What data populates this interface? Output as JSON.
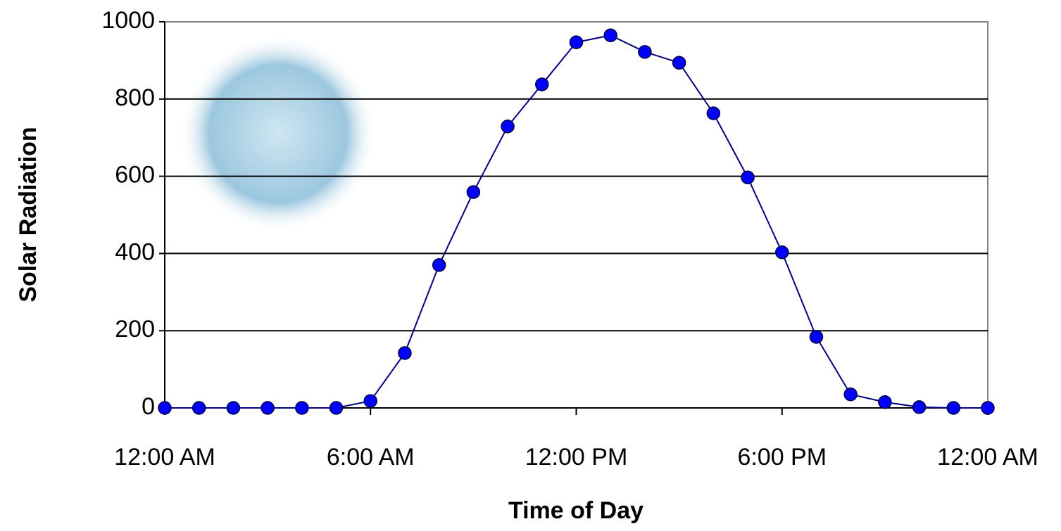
{
  "chart_data": {
    "type": "line",
    "x_label": "Time of Day",
    "y_label": "Solar Radiation",
    "x": [
      0,
      1,
      2,
      3,
      4,
      5,
      6,
      7,
      8,
      9,
      10,
      11,
      12,
      13,
      14,
      15,
      16,
      17,
      18,
      19,
      20,
      21,
      22,
      23,
      24
    ],
    "series": [
      {
        "color": "#0000ff",
        "line_color": "#000080",
        "values": [
          0,
          0,
          0,
          0,
          0,
          0,
          18,
          142,
          370,
          559,
          729,
          838,
          947,
          965,
          922,
          894,
          763,
          597,
          403,
          184,
          35,
          15,
          2,
          0,
          0
        ]
      }
    ],
    "xlim": [
      0,
      24
    ],
    "xticks": [
      {
        "value": 0,
        "label": "12:00 AM"
      },
      {
        "value": 6,
        "label": "6:00 AM"
      },
      {
        "value": 12,
        "label": "12:00 PM"
      },
      {
        "value": 18,
        "label": "6:00 PM"
      },
      {
        "value": 24,
        "label": "12:00 AM"
      }
    ],
    "ylim": [
      0,
      1000
    ],
    "yticks": [
      0,
      200,
      400,
      600,
      800,
      1000
    ],
    "grid": true
  }
}
